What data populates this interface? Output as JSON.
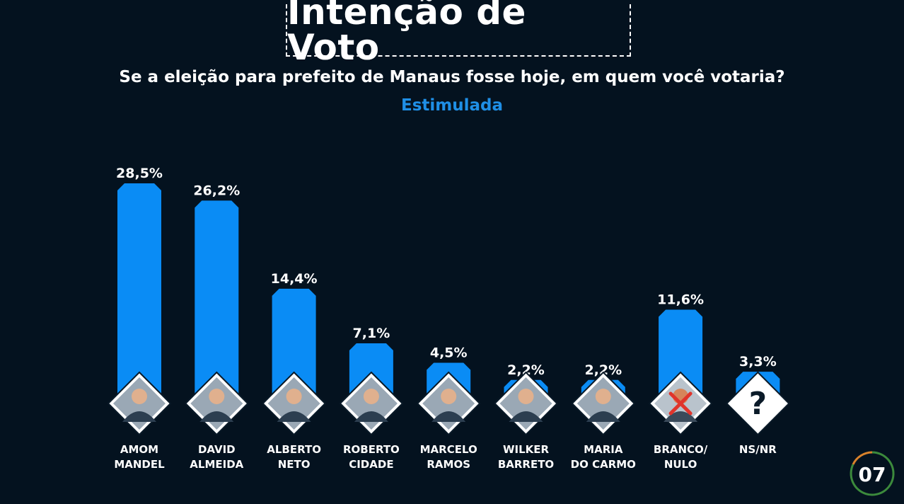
{
  "header": {
    "title": "Intenção de Voto",
    "subtitle": "Se a eleição para prefeito de Manaus fosse hoje, em quem você votaria?",
    "tag": "Estimulada"
  },
  "page_number": "07",
  "colors": {
    "background": "#04121f",
    "bar": "#0a8cf5",
    "accent": "#1f8fe6",
    "text": "#ffffff"
  },
  "chart_data": {
    "type": "bar",
    "categories": [
      [
        "AMOM",
        "MANDEL"
      ],
      [
        "DAVID",
        "ALMEIDA"
      ],
      [
        "ALBERTO",
        "NETO"
      ],
      [
        "ROBERTO",
        "CIDADE"
      ],
      [
        "MARCELO",
        "RAMOS"
      ],
      [
        "WILKER",
        "BARRETO"
      ],
      [
        "MARIA",
        "DO CARMO"
      ],
      [
        "BRANCO/",
        "NULO"
      ],
      [
        "NS/NR"
      ]
    ],
    "values": [
      28.5,
      26.2,
      14.4,
      7.1,
      4.5,
      2.2,
      2.2,
      11.6,
      3.3
    ],
    "value_labels": [
      "28,5%",
      "26,2%",
      "14,4%",
      "7,1%",
      "4,5%",
      "2,2%",
      "2,2%",
      "11,6%",
      "3,3%"
    ],
    "icons": [
      "portrait-icon",
      "portrait-icon",
      "portrait-icon",
      "portrait-icon",
      "portrait-icon",
      "portrait-icon",
      "portrait-icon",
      "blank-vote-icon",
      "question-mark-icon"
    ],
    "question_mark": "?"
  }
}
